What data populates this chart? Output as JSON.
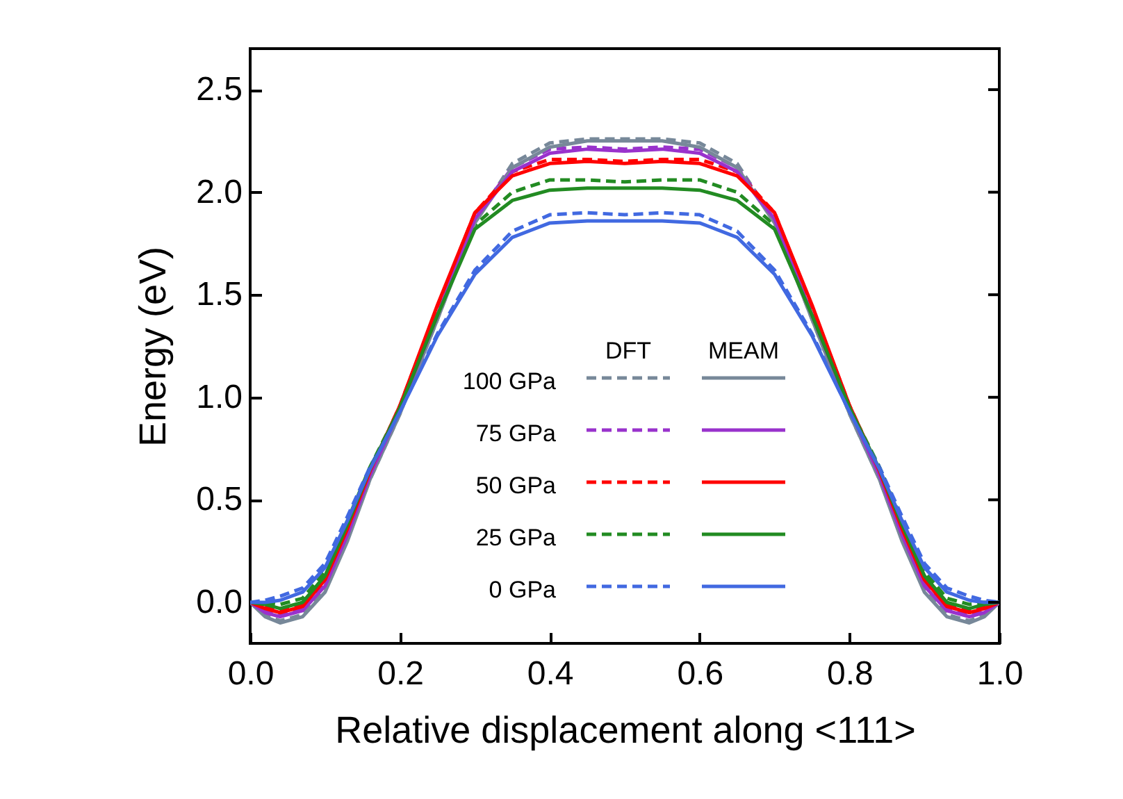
{
  "chart_data": {
    "type": "line",
    "xlabel": "Relative displacement along <111>",
    "ylabel": "Energy (eV)",
    "annotations": [
      "DFT",
      "MEAM"
    ],
    "legend": "bottom",
    "grid": false,
    "marker": "none",
    "xlim": [
      0,
      1
    ],
    "ylim": [
      -0.2,
      2.7
    ],
    "xticks": [
      {
        "value": 0,
        "label": "0.0"
      },
      {
        "value": 0.2,
        "label": "0.2"
      },
      {
        "value": 0.4,
        "label": "0.4"
      },
      {
        "value": 0.6,
        "label": "0.6"
      },
      {
        "value": 0.8,
        "label": "0.8"
      },
      {
        "value": 1,
        "label": "1.0"
      }
    ],
    "yticks": [
      {
        "value": 0,
        "label": "0.0"
      },
      {
        "value": 0.5,
        "label": "0.5"
      },
      {
        "value": 1,
        "label": "1.0"
      },
      {
        "value": 1.5,
        "label": "1.5"
      },
      {
        "value": 2,
        "label": "2.0"
      },
      {
        "value": 2.5,
        "label": "2.5"
      }
    ],
    "x": [
      0,
      0.02,
      0.04,
      0.07,
      0.1,
      0.13,
      0.16,
      0.2,
      0.25,
      0.3,
      0.35,
      0.4,
      0.45,
      0.5,
      0.55,
      0.6,
      0.65,
      0.7,
      0.75,
      0.8,
      0.84,
      0.87,
      0.9,
      0.93,
      0.96,
      0.98,
      1
    ],
    "series": [
      {
        "name": "100 GPa",
        "color": "#778899",
        "line_style": "dashed",
        "values": [
          0,
          -0.06,
          -0.09,
          -0.06,
          0.06,
          0.31,
          0.6,
          0.92,
          1.38,
          1.86,
          2.14,
          2.24,
          2.26,
          2.26,
          2.26,
          2.24,
          2.14,
          1.86,
          1.38,
          0.92,
          0.6,
          0.31,
          0.06,
          -0.06,
          -0.09,
          -0.06,
          0
        ]
      },
      {
        "name": "75 GPa",
        "color": "#9932cc",
        "line_style": "dashed",
        "values": [
          0,
          -0.04,
          -0.06,
          -0.03,
          0.09,
          0.34,
          0.62,
          0.94,
          1.4,
          1.88,
          2.12,
          2.21,
          2.22,
          2.21,
          2.22,
          2.21,
          2.12,
          1.88,
          1.4,
          0.94,
          0.62,
          0.34,
          0.09,
          -0.03,
          -0.06,
          -0.04,
          0
        ]
      },
      {
        "name": "50 GPa",
        "color": "#ff0000",
        "line_style": "dashed",
        "values": [
          0,
          -0.02,
          -0.04,
          -0.01,
          0.12,
          0.37,
          0.64,
          0.96,
          1.44,
          1.9,
          2.1,
          2.16,
          2.16,
          2.15,
          2.16,
          2.16,
          2.1,
          1.9,
          1.44,
          0.96,
          0.64,
          0.37,
          0.12,
          -0.01,
          -0.04,
          -0.02,
          0
        ]
      },
      {
        "name": "25 GPa",
        "color": "#228b22",
        "line_style": "dashed",
        "values": [
          0,
          0,
          -0.01,
          0.02,
          0.15,
          0.4,
          0.66,
          0.95,
          1.4,
          1.84,
          2,
          2.06,
          2.06,
          2.05,
          2.06,
          2.06,
          2,
          1.84,
          1.4,
          0.95,
          0.66,
          0.4,
          0.15,
          0.02,
          -0.01,
          0,
          0
        ]
      },
      {
        "name": "0 GPa",
        "color": "#4169e1",
        "line_style": "dashed",
        "values": [
          0,
          0.01,
          0.03,
          0.07,
          0.19,
          0.42,
          0.66,
          0.93,
          1.31,
          1.62,
          1.81,
          1.89,
          1.9,
          1.89,
          1.9,
          1.89,
          1.81,
          1.62,
          1.31,
          0.93,
          0.66,
          0.42,
          0.19,
          0.07,
          0.03,
          0.01,
          0
        ]
      },
      {
        "color": "#778899",
        "line_style": "solid",
        "values": [
          0,
          -0.07,
          -0.1,
          -0.07,
          0.05,
          0.3,
          0.6,
          0.92,
          1.38,
          1.85,
          2.12,
          2.22,
          2.25,
          2.25,
          2.25,
          2.22,
          2.12,
          1.85,
          1.38,
          0.92,
          0.6,
          0.3,
          0.05,
          -0.07,
          -0.1,
          -0.07,
          0
        ]
      },
      {
        "color": "#9932cc",
        "line_style": "solid",
        "values": [
          0,
          -0.05,
          -0.07,
          -0.04,
          0.08,
          0.33,
          0.62,
          0.94,
          1.4,
          1.87,
          2.1,
          2.19,
          2.21,
          2.2,
          2.21,
          2.19,
          2.1,
          1.87,
          1.4,
          0.94,
          0.62,
          0.33,
          0.08,
          -0.04,
          -0.07,
          -0.05,
          0
        ]
      },
      {
        "color": "#ff0000",
        "line_style": "solid",
        "values": [
          0,
          -0.03,
          -0.05,
          -0.02,
          0.11,
          0.36,
          0.64,
          0.96,
          1.45,
          1.9,
          2.08,
          2.14,
          2.15,
          2.14,
          2.15,
          2.14,
          2.08,
          1.9,
          1.45,
          0.96,
          0.64,
          0.36,
          0.11,
          -0.02,
          -0.05,
          -0.03,
          0
        ]
      },
      {
        "color": "#228b22",
        "line_style": "solid",
        "values": [
          0,
          -0.01,
          -0.03,
          0,
          0.13,
          0.38,
          0.65,
          0.95,
          1.4,
          1.82,
          1.96,
          2.01,
          2.02,
          2.02,
          2.02,
          2.01,
          1.96,
          1.82,
          1.4,
          0.95,
          0.65,
          0.38,
          0.13,
          0,
          -0.03,
          -0.01,
          0
        ]
      },
      {
        "color": "#4169e1",
        "line_style": "solid",
        "values": [
          0,
          0,
          0.01,
          0.05,
          0.17,
          0.4,
          0.65,
          0.93,
          1.3,
          1.6,
          1.78,
          1.85,
          1.86,
          1.86,
          1.86,
          1.85,
          1.78,
          1.6,
          1.3,
          0.93,
          0.65,
          0.4,
          0.17,
          0.05,
          0.01,
          0,
          0
        ]
      }
    ]
  }
}
